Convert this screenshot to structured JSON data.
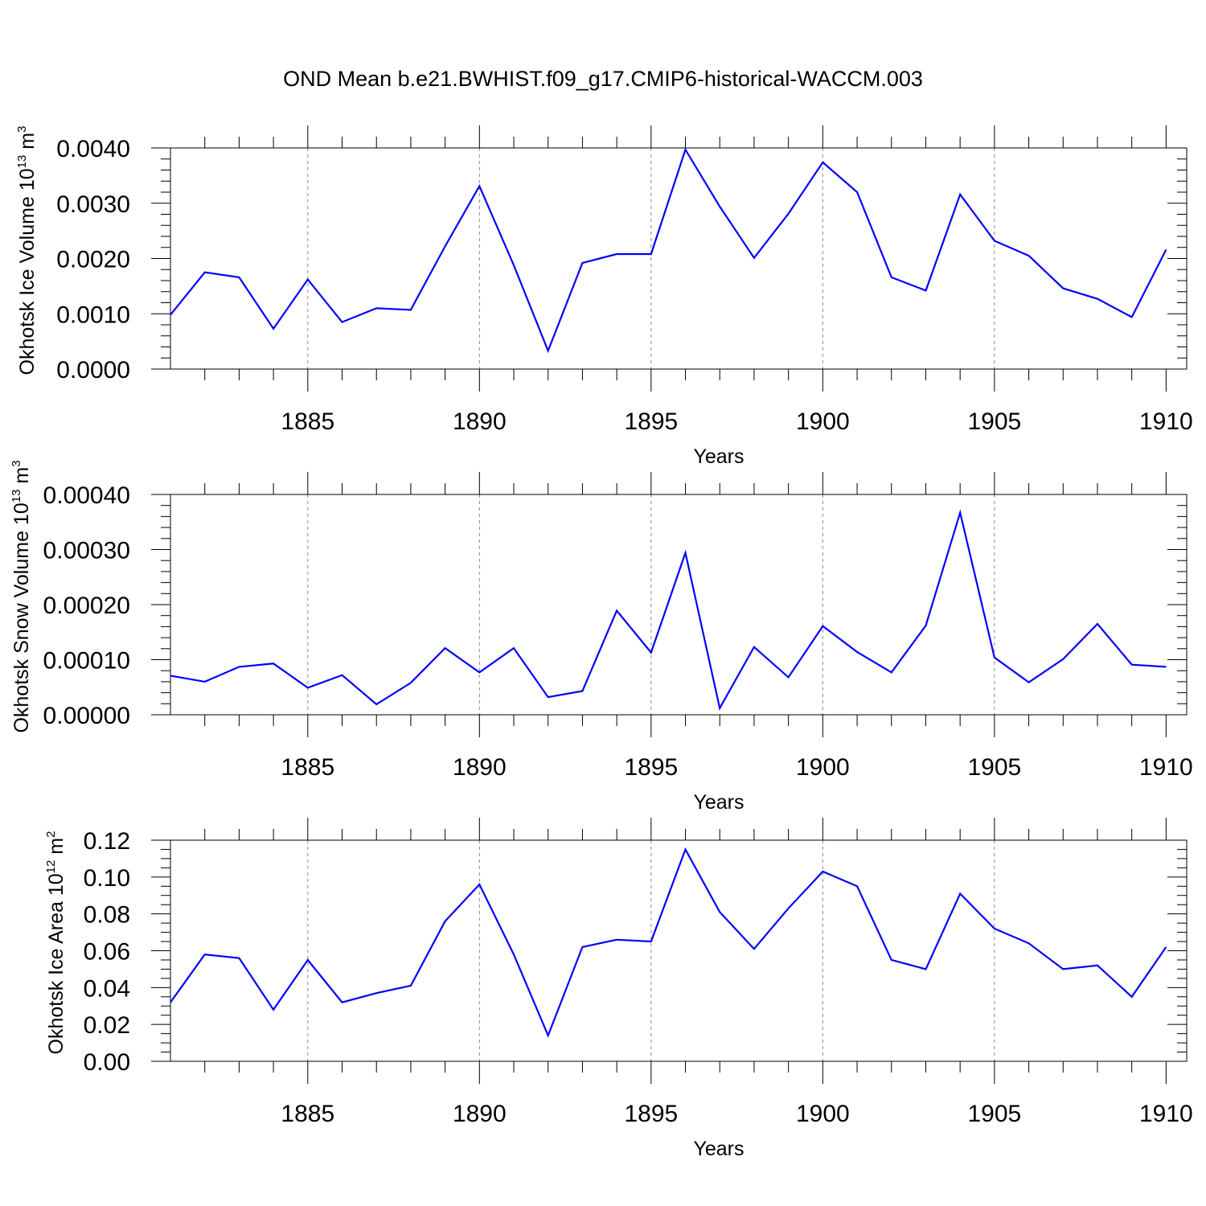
{
  "title": "OND Mean b.e21.BWHIST.f09_g17.CMIP6-historical-WACCM.003",
  "line_color": "#0000ff",
  "chart_data": [
    {
      "type": "line",
      "name": "ice-volume",
      "xlabel": "Years",
      "ylabel": {
        "text": "Okhotsk Ice Volume 10",
        "sup": "13",
        "unit": " m",
        "unit_sup": "3"
      },
      "xlim": [
        1881,
        1910
      ],
      "ylim": [
        0,
        0.004
      ],
      "xticks": [
        "1885",
        "1890",
        "1895",
        "1900",
        "1905",
        "1910"
      ],
      "yticks": [
        "0.0000",
        "0.0010",
        "0.0020",
        "0.0030",
        "0.0040"
      ],
      "x": [
        1881,
        1882,
        1883,
        1884,
        1885,
        1886,
        1887,
        1888,
        1889,
        1890,
        1891,
        1892,
        1893,
        1894,
        1895,
        1896,
        1897,
        1898,
        1899,
        1900,
        1901,
        1902,
        1903,
        1904,
        1905,
        1906,
        1907,
        1908,
        1909,
        1910
      ],
      "y": [
        0.00098,
        0.00175,
        0.00166,
        0.00073,
        0.00162,
        0.00085,
        0.0011,
        0.00107,
        0.00222,
        0.00331,
        0.00188,
        0.00033,
        0.00192,
        0.00208,
        0.00208,
        0.00397,
        0.00294,
        0.00201,
        0.00281,
        0.00374,
        0.0032,
        0.00166,
        0.00142,
        0.00316,
        0.00232,
        0.00205,
        0.00146,
        0.00127,
        0.00094,
        0.00216
      ]
    },
    {
      "type": "line",
      "name": "snow-volume",
      "xlabel": "Years",
      "ylabel": {
        "text": "Okhotsk Snow Volume 10",
        "sup": "13",
        "unit": " m",
        "unit_sup": "3"
      },
      "xlim": [
        1881,
        1910
      ],
      "ylim": [
        0,
        0.0004
      ],
      "xticks": [
        "1885",
        "1890",
        "1895",
        "1900",
        "1905",
        "1910"
      ],
      "yticks": [
        "0.00000",
        "0.00010",
        "0.00020",
        "0.00030",
        "0.00040"
      ],
      "x": [
        1881,
        1882,
        1883,
        1884,
        1885,
        1886,
        1887,
        1888,
        1889,
        1890,
        1891,
        1892,
        1893,
        1894,
        1895,
        1896,
        1897,
        1898,
        1899,
        1900,
        1901,
        1902,
        1903,
        1904,
        1905,
        1906,
        1907,
        1908,
        1909,
        1910
      ],
      "y": [
        7.1e-05,
        6e-05,
        8.7e-05,
        9.3e-05,
        4.9e-05,
        7.2e-05,
        1.9e-05,
        5.8e-05,
        0.000121,
        7.7e-05,
        0.000121,
        3.2e-05,
        4.3e-05,
        0.000189,
        0.000113,
        0.000294,
        1.2e-05,
        0.000123,
        6.8e-05,
        0.000161,
        0.000114,
        7.7e-05,
        0.000162,
        0.000367,
        0.000104,
        5.9e-05,
        0.000101,
        0.000165,
        9.1e-05,
        8.7e-05
      ]
    },
    {
      "type": "line",
      "name": "ice-area",
      "xlabel": "Years",
      "ylabel": {
        "text": "Okhotsk Ice Area 10",
        "sup": "12",
        "unit": " m",
        "unit_sup": "2"
      },
      "xlim": [
        1881,
        1910
      ],
      "ylim": [
        0,
        0.12
      ],
      "xticks": [
        "1885",
        "1890",
        "1895",
        "1900",
        "1905",
        "1910"
      ],
      "yticks": [
        "0.00",
        "0.02",
        "0.04",
        "0.06",
        "0.08",
        "0.10",
        "0.12"
      ],
      "x": [
        1881,
        1882,
        1883,
        1884,
        1885,
        1886,
        1887,
        1888,
        1889,
        1890,
        1891,
        1892,
        1893,
        1894,
        1895,
        1896,
        1897,
        1898,
        1899,
        1900,
        1901,
        1902,
        1903,
        1904,
        1905,
        1906,
        1907,
        1908,
        1909,
        1910
      ],
      "y": [
        0.032,
        0.058,
        0.056,
        0.028,
        0.055,
        0.032,
        0.037,
        0.041,
        0.076,
        0.096,
        0.058,
        0.014,
        0.062,
        0.066,
        0.065,
        0.115,
        0.081,
        0.061,
        0.083,
        0.103,
        0.095,
        0.055,
        0.05,
        0.091,
        0.072,
        0.064,
        0.05,
        0.052,
        0.035,
        0.062
      ]
    }
  ]
}
